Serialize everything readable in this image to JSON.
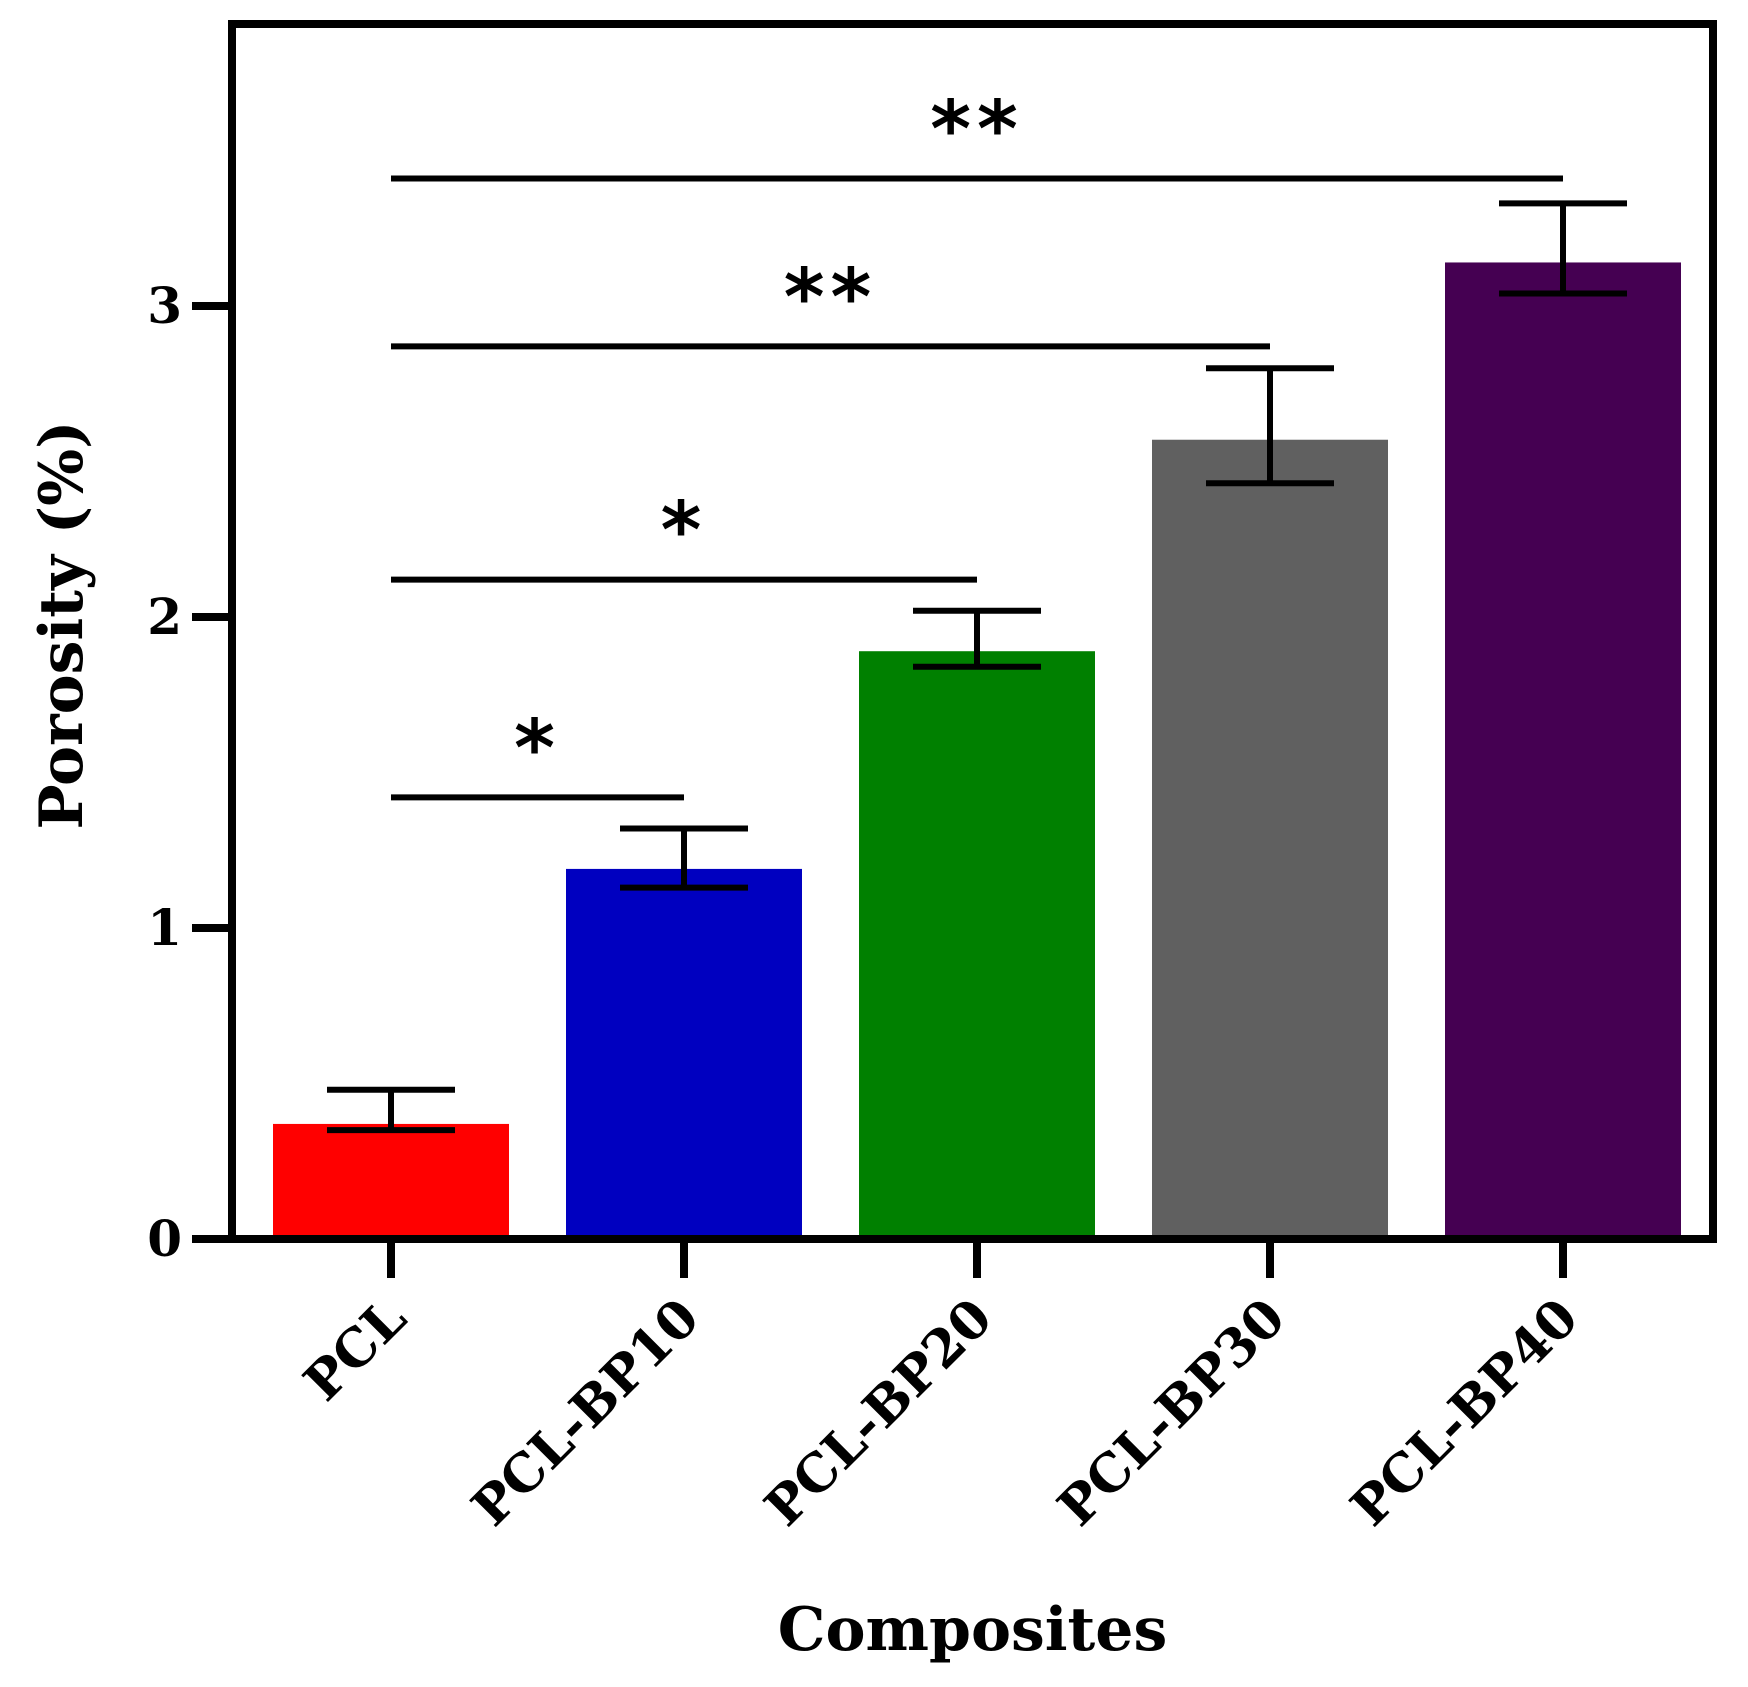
{
  "chart_data": {
    "type": "bar",
    "title": "",
    "xlabel": "Composites",
    "ylabel": "Porosity (%)",
    "ylim": [
      0,
      3.8
    ],
    "yticks": [
      0,
      1,
      2,
      3
    ],
    "ytick_labels": [
      "0",
      "1",
      "2",
      "3"
    ],
    "grid": false,
    "legend": "none",
    "categories": [
      "PCL",
      "PCL-BP10",
      "PCL-BP20",
      "PCL-BP30",
      "PCL-BP40"
    ],
    "values": [
      0.37,
      1.19,
      1.89,
      2.57,
      3.14
    ],
    "error_upper": [
      0.48,
      1.32,
      2.02,
      2.8,
      3.33
    ],
    "error_lower": [
      0.35,
      1.13,
      1.84,
      2.43,
      3.04
    ],
    "colors": [
      "#ff0000",
      "#0000c0",
      "#008000",
      "#606060",
      "#450052"
    ],
    "significance": [
      {
        "from": 0,
        "to": 1,
        "level": 1.42,
        "label": "*"
      },
      {
        "from": 0,
        "to": 2,
        "level": 2.12,
        "label": "*"
      },
      {
        "from": 0,
        "to": 3,
        "level": 2.87,
        "label": "**"
      },
      {
        "from": 0,
        "to": 4,
        "level": 3.41,
        "label": "**"
      }
    ]
  }
}
